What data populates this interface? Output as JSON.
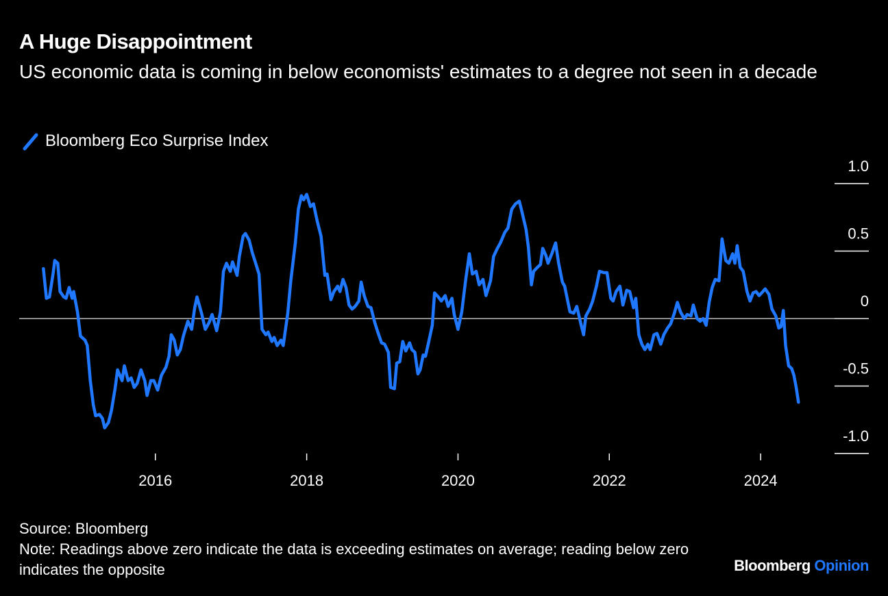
{
  "chart_data": {
    "type": "line",
    "title": "A Huge Disappointment",
    "subtitle": "US economic data is coming in below economists' estimates to a degree not seen in a decade",
    "source": "Source: Bloomberg",
    "note": "Note: Readings above zero indicate the data is exceeding estimates on average; reading below zero indicates the opposite",
    "brand": [
      "Bloomberg",
      "Opinion"
    ],
    "xlim": [
      2014.2,
      2025.43
    ],
    "xticks": [
      2016,
      2018,
      2020,
      2022,
      2024
    ],
    "ylim": [
      -1,
      1
    ],
    "yticks": [
      {
        "value": 1,
        "label": "1.0"
      },
      0.5,
      0,
      -0.5,
      {
        "value": -1,
        "label": "-1.0"
      }
    ],
    "x": [
      2014.52,
      2014.56,
      2014.6,
      2014.65,
      2014.67,
      2014.71,
      2014.74,
      2014.79,
      2014.82,
      2014.86,
      2014.9,
      2014.92,
      2014.97,
      2015.01,
      2015.07,
      2015.1,
      2015.14,
      2015.18,
      2015.21,
      2015.26,
      2015.3,
      2015.33,
      2015.38,
      2015.42,
      2015.47,
      2015.5,
      2015.56,
      2015.59,
      2015.64,
      2015.68,
      2015.72,
      2015.76,
      2015.81,
      2015.86,
      2015.89,
      2015.94,
      2015.98,
      2016.03,
      2016.08,
      2016.14,
      2016.18,
      2016.21,
      2016.25,
      2016.29,
      2016.33,
      2016.37,
      2016.43,
      2016.48,
      2016.52,
      2016.55,
      2016.61,
      2016.66,
      2016.71,
      2016.75,
      2016.81,
      2016.86,
      2016.9,
      2016.94,
      2016.99,
      2017.02,
      2017.08,
      2017.11,
      2017.16,
      2017.19,
      2017.24,
      2017.28,
      2017.32,
      2017.37,
      2017.41,
      2017.46,
      2017.49,
      2017.54,
      2017.57,
      2017.61,
      2017.66,
      2017.69,
      2017.75,
      2017.79,
      2017.85,
      2017.89,
      2017.93,
      2017.96,
      2018.0,
      2018.05,
      2018.09,
      2018.14,
      2018.19,
      2018.24,
      2018.27,
      2018.32,
      2018.36,
      2018.41,
      2018.44,
      2018.48,
      2018.52,
      2018.56,
      2018.6,
      2018.64,
      2018.69,
      2018.72,
      2018.76,
      2018.81,
      2018.85,
      2018.9,
      2018.94,
      2018.99,
      2019.03,
      2019.08,
      2019.11,
      2019.16,
      2019.19,
      2019.23,
      2019.27,
      2019.31,
      2019.36,
      2019.39,
      2019.43,
      2019.47,
      2019.5,
      2019.54,
      2019.57,
      2019.61,
      2019.66,
      2019.69,
      2019.74,
      2019.78,
      2019.83,
      2019.87,
      2019.92,
      2019.95,
      2020.0,
      2020.05,
      2020.1,
      2020.15,
      2020.19,
      2020.24,
      2020.28,
      2020.33,
      2020.37,
      2020.43,
      2020.47,
      2020.52,
      2020.56,
      2020.62,
      2020.66,
      2020.71,
      2020.76,
      2020.81,
      2020.85,
      2020.9,
      2020.93,
      2020.97,
      2021.0,
      2021.05,
      2021.09,
      2021.12,
      2021.16,
      2021.19,
      2021.24,
      2021.29,
      2021.33,
      2021.38,
      2021.41,
      2021.45,
      2021.48,
      2021.53,
      2021.57,
      2021.62,
      2021.66,
      2021.69,
      2021.74,
      2021.78,
      2021.83,
      2021.87,
      2021.93,
      2021.97,
      2022.02,
      2022.05,
      2022.09,
      2022.14,
      2022.18,
      2022.23,
      2022.27,
      2022.32,
      2022.35,
      2022.39,
      2022.43,
      2022.47,
      2022.51,
      2022.54,
      2022.59,
      2022.63,
      2022.68,
      2022.72,
      2022.77,
      2022.81,
      2022.86,
      2022.9,
      2022.94,
      2022.99,
      2023.03,
      2023.08,
      2023.11,
      2023.16,
      2023.2,
      2023.24,
      2023.28,
      2023.32,
      2023.36,
      2023.4,
      2023.45,
      2023.49,
      2023.54,
      2023.58,
      2023.63,
      2023.66,
      2023.69,
      2023.73,
      2023.77,
      2023.82,
      2023.86,
      2023.9,
      2023.94,
      2023.98,
      2024.03,
      2024.06,
      2024.11,
      2024.15,
      2024.2,
      2024.24,
      2024.27,
      2024.3,
      2024.33,
      2024.37,
      2024.41,
      2024.44,
      2024.47,
      2024.5
    ],
    "series": [
      {
        "name": "Bloomberg Eco Surprise Index",
        "color": "#1f78ff",
        "values": [
          0.37,
          0.15,
          0.16,
          0.34,
          0.43,
          0.41,
          0.2,
          0.16,
          0.15,
          0.23,
          0.15,
          0.2,
          0.05,
          -0.13,
          -0.16,
          -0.2,
          -0.46,
          -0.64,
          -0.72,
          -0.71,
          -0.74,
          -0.81,
          -0.77,
          -0.68,
          -0.51,
          -0.38,
          -0.46,
          -0.35,
          -0.46,
          -0.44,
          -0.51,
          -0.48,
          -0.38,
          -0.46,
          -0.57,
          -0.46,
          -0.46,
          -0.53,
          -0.42,
          -0.36,
          -0.28,
          -0.12,
          -0.16,
          -0.27,
          -0.23,
          -0.13,
          -0.02,
          -0.08,
          0.08,
          0.16,
          0.04,
          -0.08,
          -0.03,
          0.03,
          -0.09,
          0.05,
          0.35,
          0.41,
          0.35,
          0.42,
          0.32,
          0.46,
          0.61,
          0.63,
          0.58,
          0.49,
          0.42,
          0.33,
          -0.08,
          -0.12,
          -0.1,
          -0.17,
          -0.14,
          -0.2,
          -0.16,
          -0.2,
          0.04,
          0.28,
          0.56,
          0.81,
          0.91,
          0.88,
          0.92,
          0.83,
          0.85,
          0.72,
          0.61,
          0.32,
          0.33,
          0.14,
          0.2,
          0.24,
          0.2,
          0.29,
          0.23,
          0.1,
          0.07,
          0.09,
          0.13,
          0.27,
          0.17,
          0.09,
          0.08,
          -0.03,
          -0.1,
          -0.18,
          -0.19,
          -0.25,
          -0.51,
          -0.52,
          -0.33,
          -0.32,
          -0.17,
          -0.24,
          -0.18,
          -0.23,
          -0.25,
          -0.41,
          -0.38,
          -0.27,
          -0.28,
          -0.18,
          -0.05,
          0.19,
          0.16,
          0.13,
          0.17,
          0.09,
          0.15,
          0.03,
          -0.08,
          0.05,
          0.28,
          0.48,
          0.33,
          0.35,
          0.25,
          0.29,
          0.17,
          0.28,
          0.46,
          0.52,
          0.56,
          0.64,
          0.67,
          0.81,
          0.85,
          0.87,
          0.78,
          0.66,
          0.53,
          0.25,
          0.35,
          0.38,
          0.4,
          0.52,
          0.47,
          0.41,
          0.48,
          0.56,
          0.41,
          0.27,
          0.24,
          0.13,
          0.05,
          0.04,
          0.09,
          -0.03,
          -0.12,
          0.02,
          0.07,
          0.13,
          0.24,
          0.35,
          0.34,
          0.34,
          0.15,
          0.13,
          0.2,
          0.24,
          0.1,
          0.21,
          0.2,
          0.08,
          0.15,
          -0.12,
          -0.19,
          -0.23,
          -0.19,
          -0.23,
          -0.12,
          -0.11,
          -0.19,
          -0.12,
          -0.07,
          -0.04,
          0.04,
          0.12,
          0.05,
          0.0,
          0.03,
          0.02,
          0.1,
          0.0,
          -0.02,
          0.0,
          -0.05,
          0.12,
          0.23,
          0.29,
          0.28,
          0.59,
          0.43,
          0.41,
          0.48,
          0.41,
          0.54,
          0.38,
          0.35,
          0.2,
          0.13,
          0.19,
          0.2,
          0.17,
          0.2,
          0.22,
          0.18,
          0.07,
          0.02,
          -0.07,
          -0.06,
          0.06,
          -0.2,
          -0.35,
          -0.37,
          -0.42,
          -0.51,
          -0.62
        ]
      }
    ]
  }
}
